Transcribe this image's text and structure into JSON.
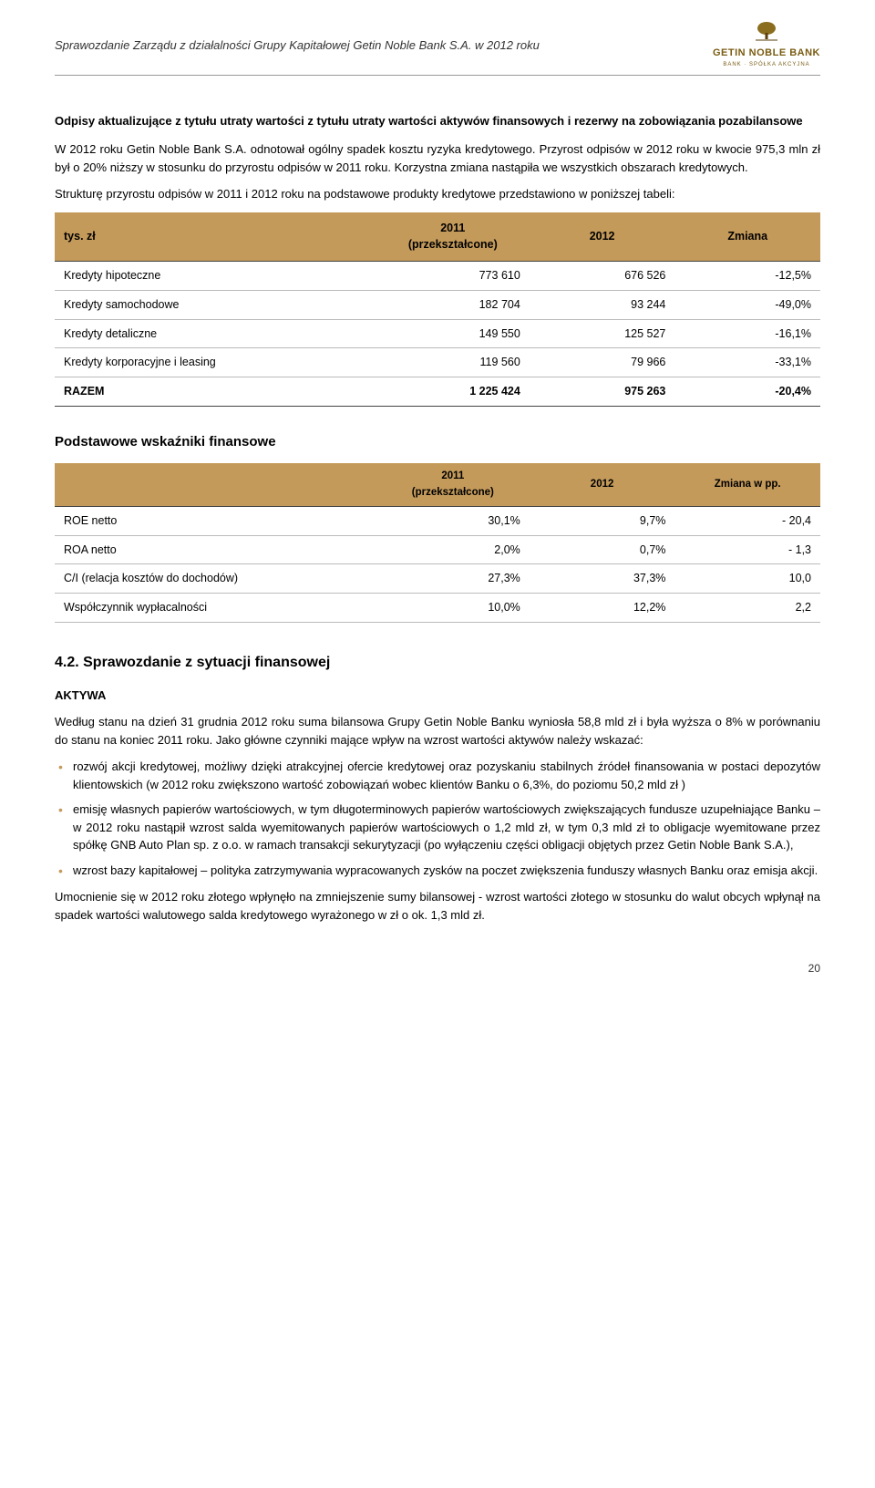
{
  "header": {
    "title": "Sprawozdanie Zarządu z działalności Grupy Kapitałowej Getin Noble Bank S.A. w 2012 roku",
    "logo_name": "GETIN NOBLE BANK",
    "logo_sub": "BANK · SPÓŁKA AKCYJNA"
  },
  "section1": {
    "title": "Odpisy aktualizujące z tytułu utraty wartości z tytułu utraty wartości aktywów finansowych i rezerwy na zobowiązania pozabilansowe",
    "para1": "W 2012 roku Getin Noble Bank S.A. odnotował ogólny spadek kosztu ryzyka kredytowego. Przyrost odpisów w 2012 roku w kwocie 975,3 mln zł był o 20% niższy w stosunku do przyrostu odpisów w 2011 roku. Korzystna zmiana nastąpiła we wszystkich obszarach kredytowych.",
    "para2": "Strukturę przyrostu odpisów w 2011 i 2012 roku na podstawowe produkty kredytowe przedstawiono w poniższej tabeli:",
    "col0": "tys. zł",
    "col1": "2011\n(przekształcone)",
    "col2": "2012",
    "col3": "Zmiana",
    "rows": [
      {
        "label": "Kredyty hipoteczne",
        "c1": "773 610",
        "c2": "676 526",
        "c3": "-12,5%"
      },
      {
        "label": "Kredyty samochodowe",
        "c1": "182 704",
        "c2": "93 244",
        "c3": "-49,0%"
      },
      {
        "label": "Kredyty detaliczne",
        "c1": "149 550",
        "c2": "125 527",
        "c3": "-16,1%"
      },
      {
        "label": "Kredyty korporacyjne i leasing",
        "c1": "119 560",
        "c2": "79 966",
        "c3": "-33,1%"
      }
    ],
    "total": {
      "label": "RAZEM",
      "c1": "1 225 424",
      "c2": "975 263",
      "c3": "-20,4%"
    }
  },
  "section2": {
    "title": "Podstawowe wskaźniki finansowe",
    "col1": "2011\n(przekształcone)",
    "col2": "2012",
    "col3": "Zmiana w pp.",
    "rows": [
      {
        "label": "ROE netto",
        "c1": "30,1%",
        "c2": "9,7%",
        "c3": "- 20,4"
      },
      {
        "label": "ROA netto",
        "c1": "2,0%",
        "c2": "0,7%",
        "c3": "- 1,3"
      },
      {
        "label": "C/I (relacja kosztów do dochodów)",
        "c1": "27,3%",
        "c2": "37,3%",
        "c3": "10,0"
      },
      {
        "label": "Współczynnik wypłacalności",
        "c1": "10,0%",
        "c2": "12,2%",
        "c3": "2,2"
      }
    ]
  },
  "section3": {
    "title": "4.2. Sprawozdanie z sytuacji finansowej",
    "aktywa": "AKTYWA",
    "para1": "Według stanu na dzień 31 grudnia 2012 roku suma bilansowa Grupy Getin Noble Banku wyniosła 58,8 mld zł i była wyższa o 8% w porównaniu do stanu na koniec 2011 roku. Jako główne czynniki mające wpływ na wzrost wartości aktywów należy wskazać:",
    "bullets": [
      "rozwój akcji kredytowej, możliwy dzięki atrakcyjnej ofercie kredytowej oraz pozyskaniu stabilnych źródeł finansowania w postaci depozytów klientowskich (w 2012 roku zwiększono wartość zobowiązań wobec klientów Banku o 6,3%, do poziomu 50,2 mld zł )",
      "emisję własnych papierów wartościowych, w tym długoterminowych papierów wartościowych zwiększających fundusze uzupełniające Banku – w 2012 roku nastąpił wzrost salda wyemitowanych papierów wartościowych o 1,2 mld zł, w tym 0,3 mld zł to obligacje wyemitowane przez spółkę GNB Auto Plan sp. z o.o.  w ramach transakcji sekurytyzacji (po wyłączeniu części obligacji objętych przez Getin Noble Bank S.A.),",
      "wzrost bazy kapitałowej – polityka zatrzymywania wypracowanych zysków na poczet zwiększenia funduszy własnych Banku oraz emisja akcji."
    ],
    "para2": "Umocnienie się w 2012 roku złotego wpłynęło na  zmniejszenie sumy bilansowej -  wzrost wartości złotego w stosunku do walut obcych wpłynął na spadek wartości walutowego salda kredytowego wyrażonego w zł o ok.  1,3 mld zł."
  },
  "pagenum": "20"
}
